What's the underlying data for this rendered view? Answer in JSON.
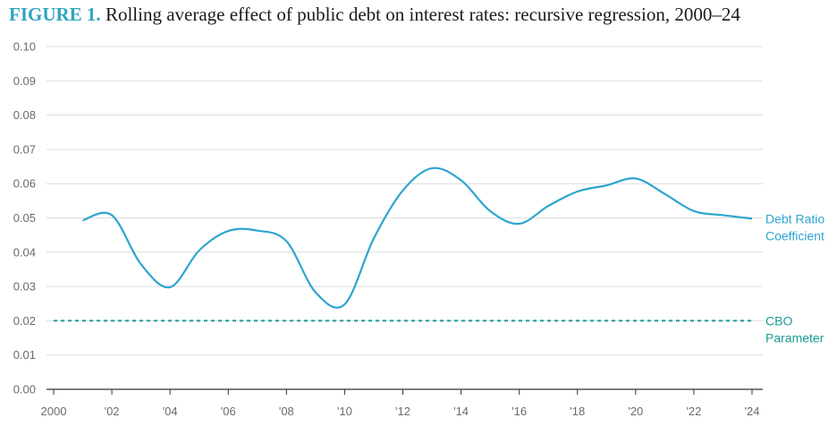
{
  "header": {
    "figure_label": "FIGURE 1.",
    "title": "Rolling average effect of public debt on interest rates: recursive regression, 2000–24"
  },
  "chart_data": {
    "type": "line",
    "title": "Rolling average effect of public debt on interest rates: recursive regression, 2000–24",
    "xlabel": "",
    "ylabel": "",
    "xlim": [
      2000,
      2024
    ],
    "ylim": [
      0,
      0.1
    ],
    "grid": true,
    "x_ticks": [
      2000,
      2002,
      2004,
      2006,
      2008,
      2010,
      2012,
      2014,
      2016,
      2018,
      2020,
      2022,
      2024
    ],
    "x_tick_labels": [
      "2000",
      "'02",
      "'04",
      "'06",
      "'08",
      "'10",
      "'12",
      "'14",
      "'16",
      "'18",
      "'20",
      "'22",
      "'24"
    ],
    "y_ticks": [
      0,
      0.01,
      0.02,
      0.03,
      0.04,
      0.05,
      0.06,
      0.07,
      0.08,
      0.09,
      0.1
    ],
    "y_tick_labels": [
      "0.00",
      "0.01",
      "0.02",
      "0.03",
      "0.04",
      "0.05",
      "0.06",
      "0.07",
      "0.08",
      "0.09",
      "0.10"
    ],
    "series": [
      {
        "name": "Debt Ratio Coefficient",
        "label_lines": [
          "Debt Ratio",
          "Coefficient"
        ],
        "style": "solid",
        "color": "#2fa4cf",
        "x": [
          2001,
          2002,
          2003,
          2004,
          2005,
          2006,
          2007,
          2008,
          2009,
          2010,
          2011,
          2012,
          2013,
          2014,
          2015,
          2016,
          2017,
          2018,
          2019,
          2020,
          2021,
          2022,
          2023,
          2024
        ],
        "y": [
          0.0493,
          0.0508,
          0.0365,
          0.0298,
          0.0405,
          0.0462,
          0.0463,
          0.0432,
          0.0283,
          0.0248,
          0.044,
          0.058,
          0.0645,
          0.061,
          0.052,
          0.0483,
          0.0535,
          0.0577,
          0.0595,
          0.0615,
          0.057,
          0.052,
          0.0508,
          0.0498
        ]
      },
      {
        "name": "CBO Parameter",
        "label_lines": [
          "CBO",
          "Parameter"
        ],
        "style": "dashed",
        "color": "#1a9c94",
        "x": [
          2000,
          2024
        ],
        "y": [
          0.02,
          0.02
        ]
      }
    ]
  }
}
